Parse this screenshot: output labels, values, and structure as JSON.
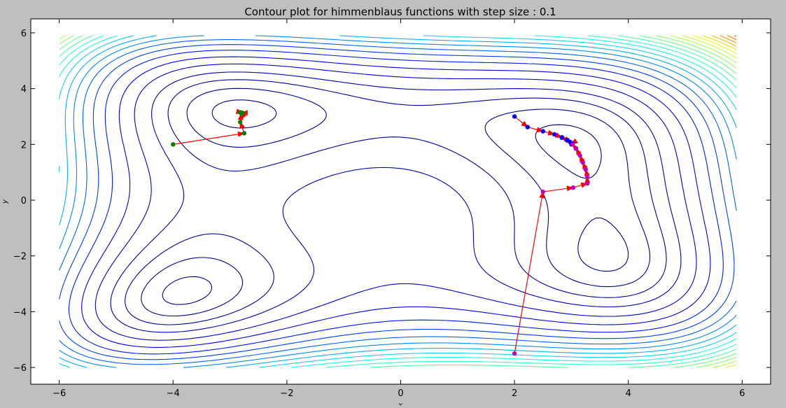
{
  "chart_data": {
    "type": "contour",
    "title": "Contour plot for himmenblaus functions with step size : 0.1",
    "xlabel": "x",
    "ylabel": "y",
    "xlim": [
      -6.5,
      6.5
    ],
    "ylim": [
      -6.6,
      6.5
    ],
    "xticks": [
      -6,
      -4,
      -2,
      0,
      2,
      4,
      6
    ],
    "yticks": [
      -6,
      -4,
      -2,
      0,
      2,
      4,
      6
    ],
    "grid": false,
    "legend": "none",
    "function": "himmelblau",
    "domain": {
      "x": [
        -6,
        5.9
      ],
      "y": [
        -6,
        5.9
      ]
    },
    "contour_levels": [
      10,
      40,
      80,
      130,
      200,
      280,
      370,
      460,
      550,
      640,
      730,
      820,
      910,
      1000,
      1090,
      1180,
      1270,
      1360,
      1450,
      1540,
      1630,
      1720,
      1810,
      1900,
      1990,
      2080,
      2170,
      2260,
      2350,
      2440
    ],
    "colormap": [
      "#00007f",
      "#0000ff",
      "#0080ff",
      "#19ffe5",
      "#7dff7a",
      "#e5ff19",
      "#ff9400",
      "#ff1e00",
      "#7f0000"
    ],
    "series": [
      {
        "color": "#008000",
        "arrow_color": "#ff0000",
        "points": [
          [
            -4.0,
            2.0
          ],
          [
            -2.75,
            2.4
          ],
          [
            -2.82,
            2.8
          ],
          [
            -2.8,
            3.1
          ],
          [
            -2.82,
            3.15
          ],
          [
            -2.78,
            3.13
          ],
          [
            -2.8,
            3.13
          ]
        ]
      },
      {
        "color": "#0000ff",
        "arrow_color": "#ff0000",
        "points": [
          [
            2.0,
            3.0
          ],
          [
            2.23,
            2.62
          ],
          [
            2.5,
            2.47
          ],
          [
            2.7,
            2.36
          ],
          [
            2.83,
            2.25
          ],
          [
            2.92,
            2.16
          ],
          [
            2.98,
            2.08
          ],
          [
            3.02,
            2.03
          ],
          [
            3.0,
            2.0
          ]
        ]
      },
      {
        "color": "#bf00bf",
        "arrow_color": "#ff0000",
        "points": [
          [
            2.0,
            -5.5
          ],
          [
            2.5,
            0.3
          ],
          [
            3.03,
            0.45
          ],
          [
            3.28,
            0.6
          ],
          [
            3.28,
            0.85
          ],
          [
            3.25,
            1.1
          ],
          [
            3.2,
            1.35
          ],
          [
            3.15,
            1.6
          ],
          [
            3.08,
            1.85
          ],
          [
            3.02,
            2.0
          ]
        ]
      }
    ]
  }
}
